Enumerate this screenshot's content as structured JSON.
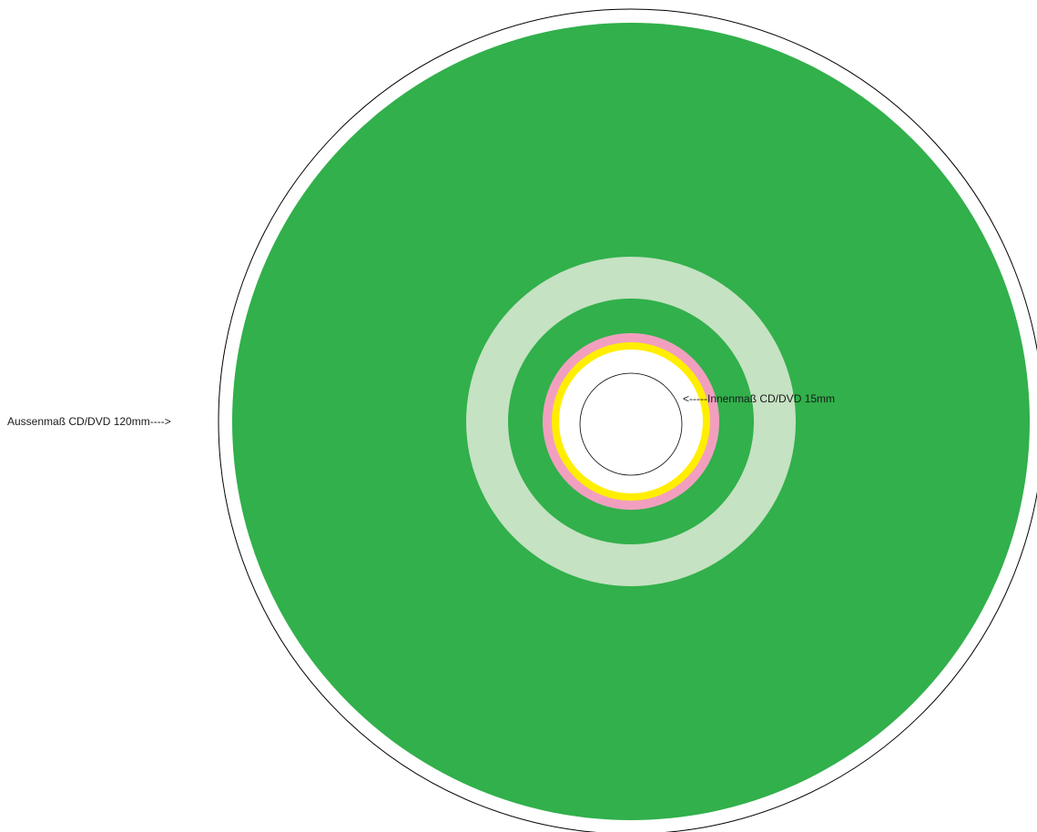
{
  "labels": {
    "outer": "Aussenmaß CD/DVD 120mm---->",
    "inner": "<-----Innenmaß CD/DVD 15mm"
  },
  "colors": {
    "disc_outline": "#000000",
    "disc_edge": "#ffffff",
    "print_area": "#31b04b",
    "stacking_ring": "#c5e2c2",
    "pink_ring": "#f29fbf",
    "yellow_ring": "#ffee00",
    "hub": "#ffffff",
    "hole_outline": "#000000"
  }
}
